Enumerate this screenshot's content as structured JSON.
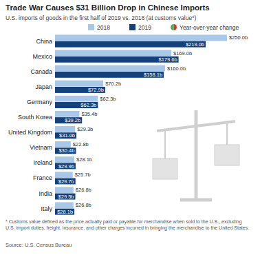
{
  "chart_data": {
    "type": "bar",
    "orientation": "horizontal",
    "title": "Trade War Causes $31 Billion Drop in Chinese Imports",
    "subtitle": "U.S. imports of goods in the first half of 2019 vs. 2018 (at customs value*)",
    "categories": [
      "China",
      "Mexico",
      "Canada",
      "Japan",
      "Germany",
      "South Korea",
      "United Kingdom",
      "Vietnam",
      "Ireland",
      "France",
      "India",
      "Italy"
    ],
    "series": [
      {
        "name": "2018",
        "color": "#a8c8ea",
        "values": [
          250.0,
          169.0,
          160.0,
          70.2,
          62.3,
          35.4,
          29.3,
          22.8,
          28.1,
          25.7,
          26.8,
          26.8
        ],
        "value_labels": [
          "$250.0b",
          "$169.0b",
          "$160.0b",
          "$70.2b",
          "$62.3b",
          "$35.4b",
          "$29.3b",
          "$22.8b",
          "$28.1b",
          "$25.7b",
          "$26.8b",
          "$26.8b"
        ]
      },
      {
        "name": "2019",
        "color": "#15417a",
        "values": [
          219.0,
          179.6,
          158.1,
          72.9,
          62.3,
          39.2,
          31.0,
          30.4,
          29.9,
          29.7,
          29.5,
          28.1
        ],
        "value_labels": [
          "$219.0b",
          "$179.6b",
          "$158.1b",
          "$72.9b",
          "$62.3b",
          "$39.2b",
          "$31.0b",
          "$30.4b",
          "$29.9b",
          "$29.7b",
          "$29.5b",
          "$28.1b"
        ]
      }
    ],
    "xlim": [
      0,
      250
    ],
    "data_labels": true,
    "tick_labels": false,
    "grid": false,
    "legend": "top",
    "annotations": [
      "Year-over-year change"
    ],
    "footnote": "* Customs value defined as the price actually paid or payable for merchandise when sold to the U.S., excluding U.S. import duties, freight, insurance, and other charges incurred in bringing the merchandise to the United States.",
    "source": "Source: U.S. Census Bureau"
  }
}
